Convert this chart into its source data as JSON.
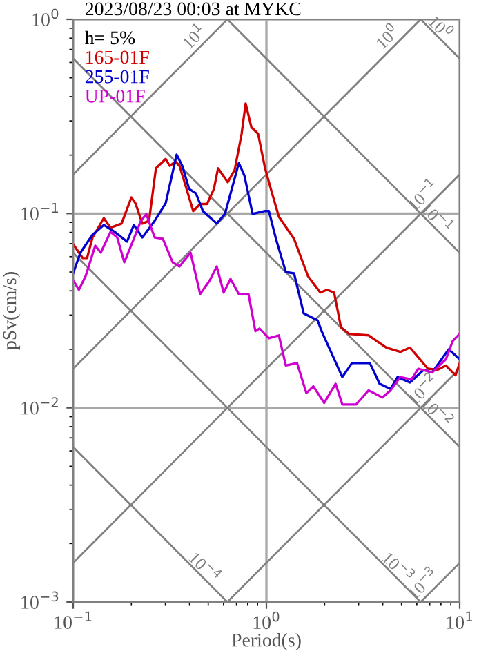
{
  "chart_data": {
    "type": "line",
    "title": "2023/08/23 00:03 at MYKC",
    "xlabel": "Period(s)",
    "ylabel": "pSv(cm/s)",
    "legend_title": "h= 5%",
    "legend": "top left",
    "log": "xy",
    "grid": true,
    "xlim": [
      0.1,
      10
    ],
    "ylim": [
      0.001,
      1
    ],
    "xticks": [
      {
        "value": 0.1,
        "label": "10$^{−1}$"
      },
      {
        "value": 1,
        "label": "10$^{0}$"
      },
      {
        "value": 10,
        "label": "10$^{1}$"
      }
    ],
    "yticks": [
      {
        "value": 0.001,
        "label": "10$^{−3}$"
      },
      {
        "value": 0.01,
        "label": "10$^{−2}$"
      },
      {
        "value": 0.1,
        "label": "10$^{−1}$"
      },
      {
        "value": 1,
        "label": "10$^{0}$"
      }
    ],
    "annotations": [
      {
        "text": "10$^{1}$",
        "x": 0.628,
        "y": 1
      },
      {
        "text": "10$^{0}$",
        "x": 6.28,
        "y": 1
      },
      {
        "text": "10$^{−1}$",
        "x": 10,
        "y": 0.159
      },
      {
        "text": "10$^{−2}$",
        "x": 10,
        "y": 0.0159
      },
      {
        "text": "10$^{−3}$",
        "x": 10,
        "y": 0.00159
      },
      {
        "text": "10$^{−4}$",
        "x": 0.628,
        "y": 0.001
      },
      {
        "text": "10$^{−3}$",
        "x": 6.28,
        "y": 0.001
      },
      {
        "text": "10$^{−2}$",
        "x": 10,
        "y": 0.00628
      },
      {
        "text": "10$^{−1}$",
        "x": 10,
        "y": 0.0628
      },
      {
        "text": "10$^{0}$",
        "x": 10,
        "y": 0.628
      }
    ],
    "series": [
      {
        "type": "line",
        "color": "#808080",
        "x": [
          0.1,
          0.628
        ],
        "values": [
          0.159,
          1
        ]
      },
      {
        "type": "line",
        "color": "#808080",
        "x": [
          0.1,
          6.28
        ],
        "values": [
          0.0159,
          1
        ]
      },
      {
        "type": "line",
        "color": "#808080",
        "x": [
          0.1,
          10
        ],
        "values": [
          0.00159,
          0.159
        ]
      },
      {
        "type": "line",
        "color": "#808080",
        "x": [
          0.628,
          10
        ],
        "values": [
          0.001,
          0.0159
        ]
      },
      {
        "type": "line",
        "color": "#808080",
        "x": [
          6.28,
          10
        ],
        "values": [
          0.001,
          0.00159
        ]
      },
      {
        "type": "line",
        "color": "#808080",
        "x": [
          0.1,
          0.628
        ],
        "values": [
          0.00628,
          0.001
        ]
      },
      {
        "type": "line",
        "color": "#808080",
        "x": [
          0.1,
          6.28
        ],
        "values": [
          0.0628,
          0.001
        ]
      },
      {
        "type": "line",
        "color": "#808080",
        "x": [
          0.1,
          10
        ],
        "values": [
          0.628,
          0.00628
        ]
      },
      {
        "type": "line",
        "color": "#808080",
        "x": [
          0.628,
          10
        ],
        "values": [
          1,
          0.0628
        ]
      },
      {
        "type": "line",
        "color": "#808080",
        "x": [
          6.28,
          10
        ],
        "values": [
          1,
          0.628
        ]
      },
      {
        "name": "165-01F",
        "color": "#d00000",
        "x": [
          0.1,
          0.112,
          0.118,
          0.126,
          0.144,
          0.156,
          0.178,
          0.2,
          0.21,
          0.228,
          0.247,
          0.268,
          0.301,
          0.316,
          0.338,
          0.355,
          0.373,
          0.418,
          0.454,
          0.493,
          0.535,
          0.562,
          0.631,
          0.685,
          0.744,
          0.781,
          0.835,
          0.906,
          0.984,
          1.07,
          1.16,
          1.39,
          1.64,
          1.9,
          2.06,
          2.24,
          2.43,
          2.68,
          3.38,
          4.18,
          4.93,
          5.53,
          6.85,
          7.69,
          8.49,
          9.52,
          10
        ],
        "values": [
          0.0695,
          0.059,
          0.059,
          0.0753,
          0.0947,
          0.0845,
          0.0888,
          0.121,
          0.113,
          0.0888,
          0.0917,
          0.171,
          0.191,
          0.176,
          0.185,
          0.176,
          0.15,
          0.103,
          0.112,
          0.112,
          0.134,
          0.171,
          0.145,
          0.168,
          0.257,
          0.369,
          0.279,
          0.257,
          0.171,
          0.127,
          0.0963,
          0.0741,
          0.0476,
          0.0392,
          0.0405,
          0.0392,
          0.026,
          0.024,
          0.0236,
          0.0204,
          0.0194,
          0.0204,
          0.0159,
          0.0157,
          0.0165,
          0.0147,
          0.017
        ]
      },
      {
        "name": "255-01F",
        "color": "#0000d0",
        "x": [
          0.1,
          0.109,
          0.126,
          0.144,
          0.164,
          0.19,
          0.206,
          0.228,
          0.264,
          0.301,
          0.343,
          0.367,
          0.398,
          0.432,
          0.469,
          0.553,
          0.61,
          0.72,
          0.769,
          0.848,
          0.984,
          1.03,
          1.12,
          1.26,
          1.39,
          1.56,
          1.84,
          1.93,
          2.47,
          2.77,
          3.43,
          3.85,
          4.39,
          4.77,
          5.53,
          6.52,
          7.2,
          8.77,
          10
        ],
        "values": [
          0.0492,
          0.0629,
          0.0778,
          0.0873,
          0.0805,
          0.0717,
          0.0873,
          0.0753,
          0.0917,
          0.113,
          0.201,
          0.176,
          0.134,
          0.127,
          0.103,
          0.0888,
          0.0995,
          0.182,
          0.157,
          0.0995,
          0.103,
          0.103,
          0.0741,
          0.05,
          0.0492,
          0.0306,
          0.0282,
          0.0248,
          0.0144,
          0.017,
          0.017,
          0.0133,
          0.0125,
          0.0144,
          0.0135,
          0.0157,
          0.0152,
          0.02,
          0.0178
        ]
      },
      {
        "name": "UP-01F",
        "color": "#d000d0",
        "x": [
          0.1,
          0.107,
          0.116,
          0.13,
          0.139,
          0.156,
          0.169,
          0.184,
          0.206,
          0.224,
          0.239,
          0.264,
          0.291,
          0.327,
          0.355,
          0.405,
          0.454,
          0.51,
          0.553,
          0.601,
          0.652,
          0.72,
          0.808,
          0.877,
          0.921,
          1.03,
          1.16,
          1.26,
          1.44,
          1.61,
          1.75,
          1.99,
          2.28,
          2.47,
          2.91,
          3.38,
          3.98,
          4.39,
          4.93,
          5.63,
          6.11,
          7.2,
          8.49,
          9.21,
          10
        ],
        "values": [
          0.0454,
          0.0405,
          0.0476,
          0.0683,
          0.0629,
          0.0805,
          0.0753,
          0.0561,
          0.0741,
          0.0917,
          0.0995,
          0.0753,
          0.0741,
          0.0561,
          0.0534,
          0.0629,
          0.0385,
          0.0454,
          0.0534,
          0.0392,
          0.0461,
          0.0385,
          0.0385,
          0.0248,
          0.0256,
          0.0228,
          0.0236,
          0.0165,
          0.017,
          0.0119,
          0.0129,
          0.0106,
          0.0133,
          0.0104,
          0.0104,
          0.0123,
          0.0113,
          0.0123,
          0.0144,
          0.014,
          0.0159,
          0.0152,
          0.0178,
          0.0221,
          0.024
        ]
      }
    ]
  }
}
